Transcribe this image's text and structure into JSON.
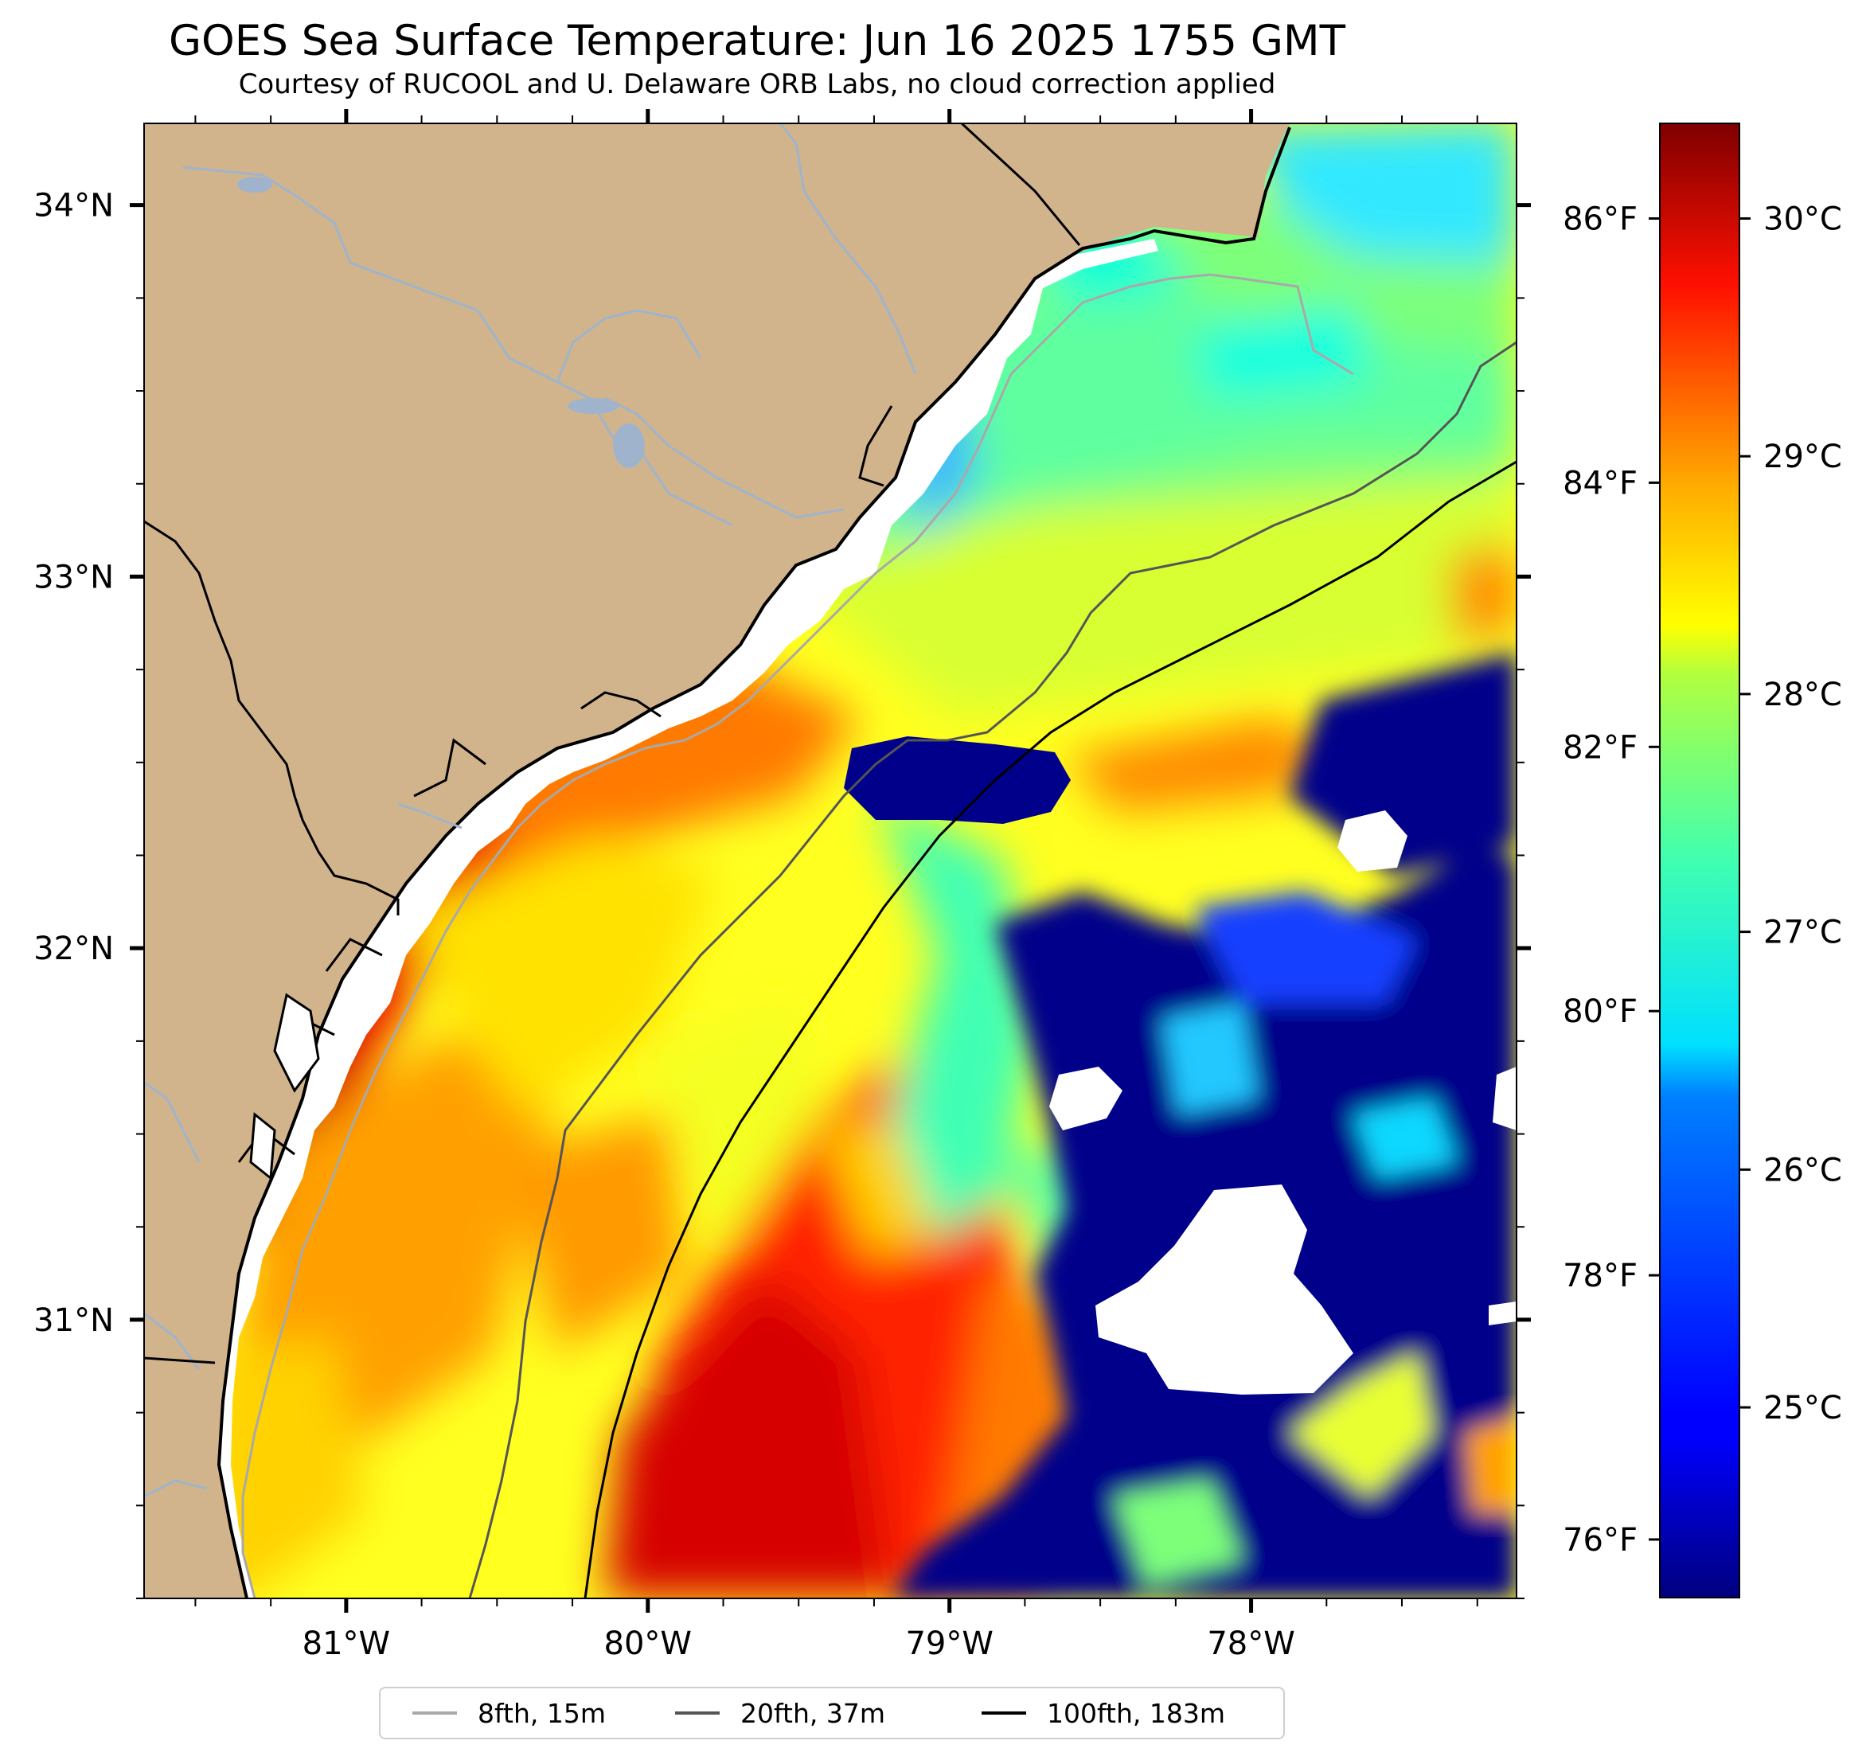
{
  "title": "GOES Sea Surface Temperature: Jun 16 2025 1755 GMT",
  "subtitle": "Courtesy of RUCOOL and U. Delaware ORB Labs, no cloud correction applied",
  "map": {
    "lon_range": [
      -81.67,
      -77.12
    ],
    "lat_range": [
      30.25,
      34.22
    ],
    "lon_ticks": [
      {
        "value": -81,
        "label": "81°W"
      },
      {
        "value": -80,
        "label": "80°W"
      },
      {
        "value": -79,
        "label": "79°W"
      },
      {
        "value": -78,
        "label": "78°W"
      }
    ],
    "lat_ticks": [
      {
        "value": 34,
        "label": "34°N"
      },
      {
        "value": 33,
        "label": "33°N"
      },
      {
        "value": 32,
        "label": "32°N"
      },
      {
        "value": 31,
        "label": "31°N"
      }
    ],
    "land_color": "#d2b48c",
    "river_color": "#9fb4cc"
  },
  "colorbar": {
    "colormap": "jet",
    "celsius_range": [
      24.2,
      30.4
    ],
    "celsius_ticks": [
      {
        "value": 25,
        "label": "25°C"
      },
      {
        "value": 26,
        "label": "26°C"
      },
      {
        "value": 27,
        "label": "27°C"
      },
      {
        "value": 28,
        "label": "28°C"
      },
      {
        "value": 29,
        "label": "29°C"
      },
      {
        "value": 30,
        "label": "30°C"
      }
    ],
    "fahrenheit_ticks": [
      {
        "value": 76,
        "label": "76°F"
      },
      {
        "value": 78,
        "label": "78°F"
      },
      {
        "value": 80,
        "label": "80°F"
      },
      {
        "value": 82,
        "label": "82°F"
      },
      {
        "value": 84,
        "label": "84°F"
      },
      {
        "value": 86,
        "label": "86°F"
      }
    ]
  },
  "legend": {
    "placement": "bottom-center",
    "items": [
      {
        "label": "8fth, 15m",
        "color": "#a9a9a9"
      },
      {
        "label": "20fth, 37m",
        "color": "#555555"
      },
      {
        "label": "100fth, 183m",
        "color": "#000000"
      }
    ]
  }
}
